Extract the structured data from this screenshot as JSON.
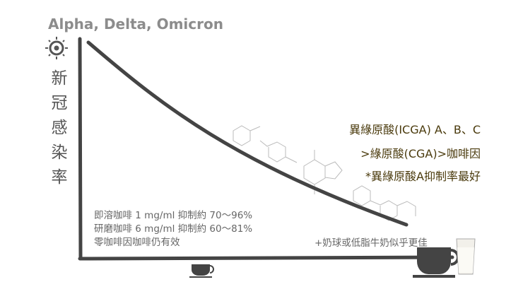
{
  "header": {
    "title": "Alpha, Delta, Omicron",
    "y_label": "新冠感染率"
  },
  "findings": [
    "異綠原酸(ICGA) A、B、C",
    ">綠原酸(CGA)>咖啡因",
    "*異綠原酸A抑制率最好"
  ],
  "notes": [
    "即溶咖啡 1 mg/ml 抑制約 70～96%",
    "研磨咖啡 6 mg/ml 抑制約 60～81%",
    "零咖啡因咖啡仍有效"
  ],
  "tip": "+奶球或低脂牛奶似乎更佳"
}
